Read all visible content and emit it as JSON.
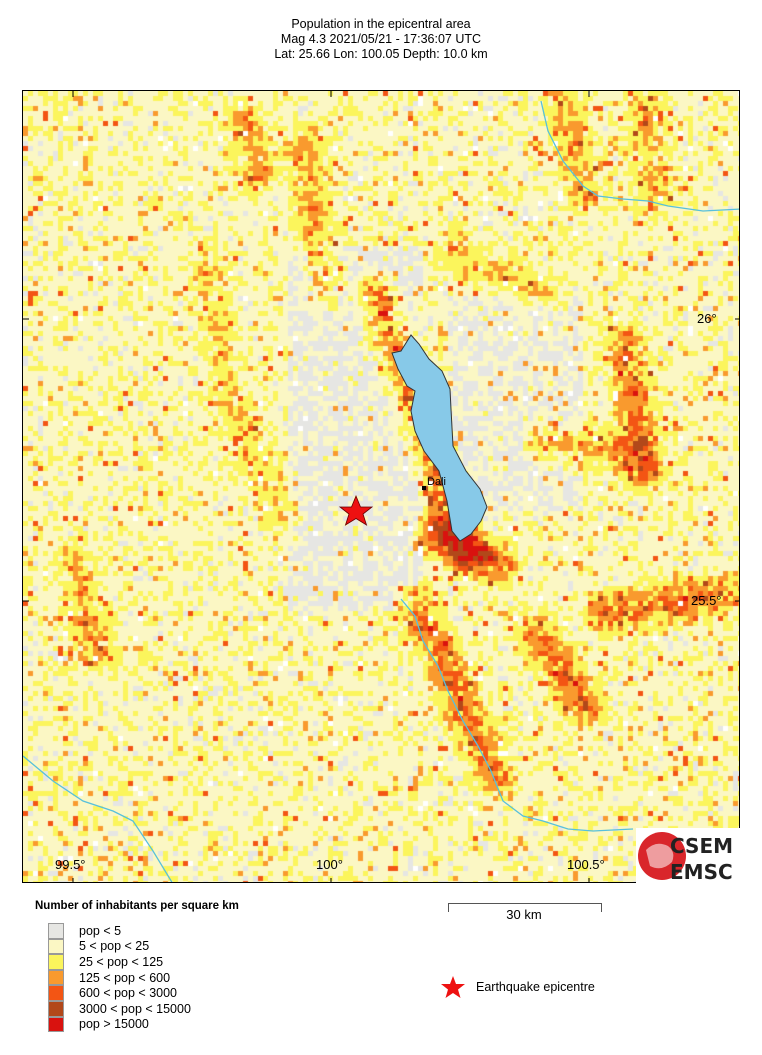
{
  "header": {
    "title": "Population in the epicentral area",
    "line2": "Mag 4.3  2021/05/21 - 17:36:07 UTC",
    "line3": "Lat: 25.66    Lon: 100.05    Depth:  10.0 km"
  },
  "map": {
    "lat_ticks": [
      "26°",
      "25.5°"
    ],
    "lon_ticks": [
      "99.5°",
      "100°",
      "100.5°"
    ],
    "city": "Dali",
    "epicentre": {
      "lat": 25.66,
      "lon": 100.05
    },
    "water_color": "#87c9e8",
    "epicentre_color": "#ee1111"
  },
  "legend": {
    "title": "Number of inhabitants per square km",
    "classes": [
      {
        "label": "pop < 5",
        "color": "#e6e6e3"
      },
      {
        "label": "5 < pop < 25",
        "color": "#fbf7c4"
      },
      {
        "label": "25 < pop < 125",
        "color": "#fbf55c"
      },
      {
        "label": "125 < pop < 600",
        "color": "#f99a2e"
      },
      {
        "label": "600 < pop < 3000",
        "color": "#f35514"
      },
      {
        "label": "3000 < pop < 15000",
        "color": "#b2481a"
      },
      {
        "label": "pop > 15000",
        "color": "#d9120f"
      }
    ],
    "scale": "30 km",
    "epicentre_label": "Earthquake epicentre"
  },
  "logo": {
    "top": "CSEM",
    "bottom": "EMSC"
  }
}
